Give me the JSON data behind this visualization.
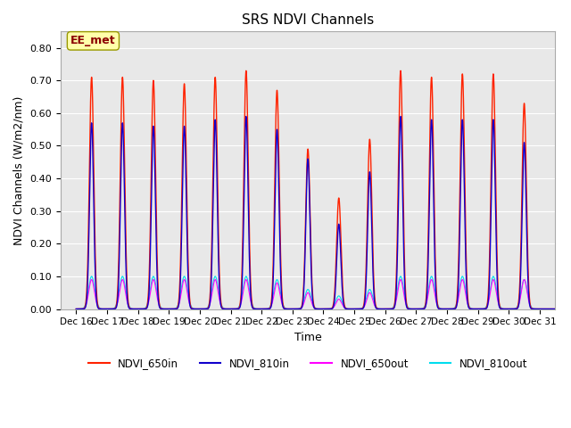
{
  "title": "SRS NDVI Channels",
  "xlabel": "Time",
  "ylabel": "NDVI Channels (W/m2/nm)",
  "annotation": "EE_met",
  "ylim": [
    0.0,
    0.85
  ],
  "yticks": [
    0.0,
    0.1,
    0.2,
    0.3,
    0.4,
    0.5,
    0.6,
    0.7,
    0.8
  ],
  "bg_color": "#e8e8e8",
  "days": [
    "Dec 16",
    "Dec 17",
    "Dec 18",
    "Dec 19",
    "Dec 20",
    "Dec 21",
    "Dec 22",
    "Dec 23",
    "Dec 24",
    "Dec 25",
    "Dec 26",
    "Dec 27",
    "Dec 28",
    "Dec 29",
    "Dec 30",
    "Dec 31"
  ],
  "peaks_650in": [
    0.71,
    0.71,
    0.7,
    0.69,
    0.71,
    0.73,
    0.67,
    0.49,
    0.34,
    0.52,
    0.73,
    0.71,
    0.72,
    0.72,
    0.63,
    0.0
  ],
  "peaks_810in": [
    0.57,
    0.57,
    0.56,
    0.56,
    0.58,
    0.59,
    0.55,
    0.46,
    0.26,
    0.42,
    0.59,
    0.58,
    0.58,
    0.58,
    0.51,
    0.0
  ],
  "peaks_650out": [
    0.09,
    0.09,
    0.09,
    0.09,
    0.09,
    0.09,
    0.08,
    0.05,
    0.03,
    0.05,
    0.09,
    0.09,
    0.09,
    0.09,
    0.09,
    0.0
  ],
  "peaks_810out": [
    0.1,
    0.1,
    0.1,
    0.1,
    0.1,
    0.1,
    0.09,
    0.06,
    0.04,
    0.06,
    0.1,
    0.1,
    0.1,
    0.1,
    0.09,
    0.0
  ],
  "color_650in": "#ff2200",
  "color_810in": "#1100cc",
  "color_650out": "#ff00ff",
  "color_810out": "#00ddee",
  "legend_labels": [
    "NDVI_650in",
    "NDVI_810in",
    "NDVI_650out",
    "NDVI_810out"
  ]
}
